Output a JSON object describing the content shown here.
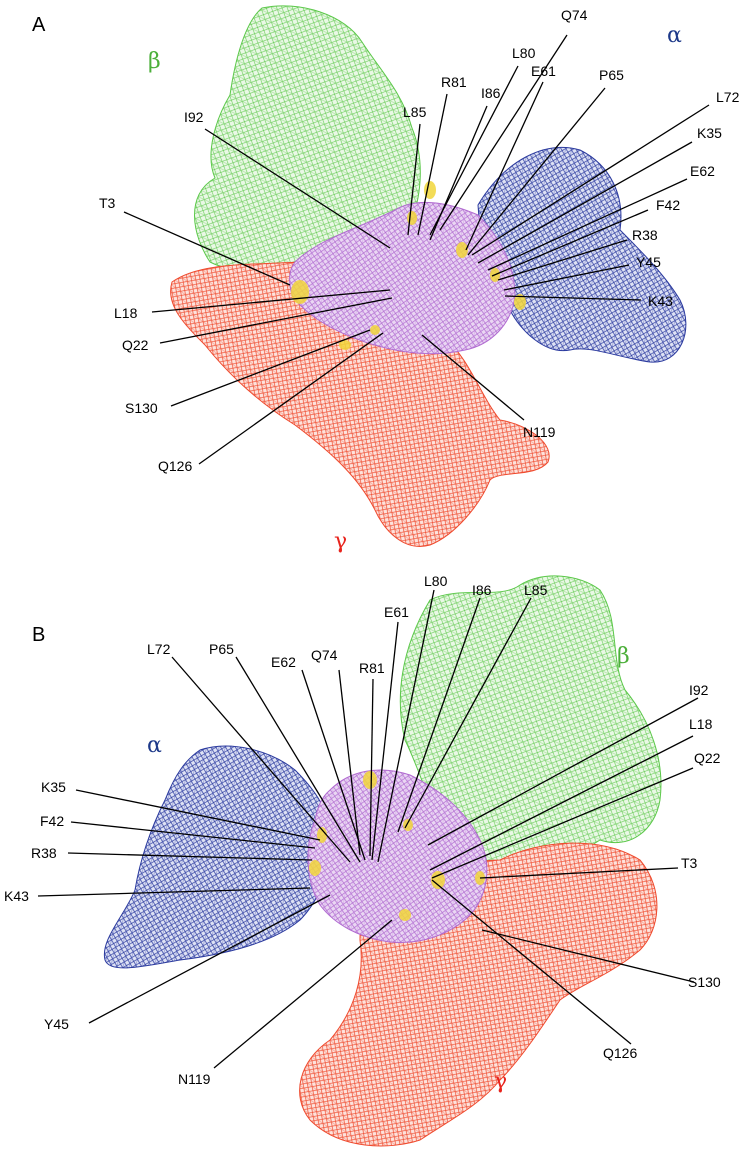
{
  "panels": [
    {
      "id": "A",
      "label": "A",
      "subunits": {
        "alpha": "α",
        "beta": "β",
        "gamma": "γ"
      },
      "residues": [
        "Q74",
        "L80",
        "L85",
        "R81",
        "I86",
        "E61",
        "P65",
        "L72",
        "I92",
        "K35",
        "E62",
        "T3",
        "F42",
        "R38",
        "Y45",
        "K43",
        "L18",
        "Q22",
        "S130",
        "N119",
        "Q126"
      ]
    },
    {
      "id": "B",
      "label": "B",
      "subunits": {
        "alpha": "α",
        "beta": "β",
        "gamma": "γ"
      },
      "residues": [
        "L80",
        "I86",
        "L85",
        "E61",
        "L72",
        "P65",
        "E62",
        "Q74",
        "R81",
        "I92",
        "L18",
        "Q22",
        "K35",
        "F42",
        "R38",
        "T3",
        "K43",
        "S130",
        "Y45",
        "Q126",
        "N119"
      ]
    }
  ],
  "colors": {
    "alpha": "#2b3a9e",
    "beta": "#5cc84a",
    "gamma": "#ef4a2e",
    "center": "#b06ad0",
    "contact": "#f2d63a",
    "alpha_label": "#1e3a8a",
    "beta_label": "#4caf3a",
    "gamma_label": "#e8231c"
  }
}
